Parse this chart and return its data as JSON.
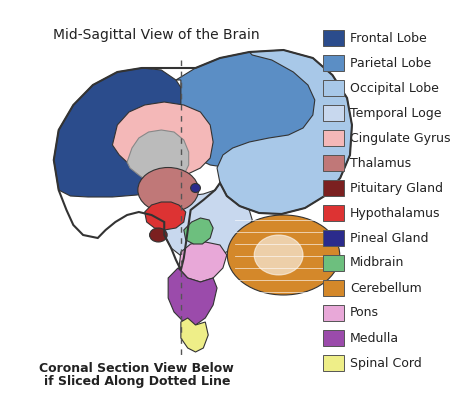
{
  "title": "Mid-Sagittal View of the Brain",
  "bottom_text_line1": "Coronal Section View Below",
  "bottom_text_line2": "if Sliced Along Dotted Line",
  "legend_items": [
    {
      "label": "Frontal Lobe",
      "color": "#2B4C8C"
    },
    {
      "label": "Parietal Lobe",
      "color": "#5B8EC5"
    },
    {
      "label": "Occipital Lobe",
      "color": "#A8C8E8"
    },
    {
      "label": "Temporal Loge",
      "color": "#C8D8EE"
    },
    {
      "label": "Cingulate Gyrus",
      "color": "#F4B8B8"
    },
    {
      "label": "Thalamus",
      "color": "#C07878"
    },
    {
      "label": "Pituitary Gland",
      "color": "#7B2020"
    },
    {
      "label": "Hypothalamus",
      "color": "#DD3333"
    },
    {
      "label": "Pineal Gland",
      "color": "#2B2B8C"
    },
    {
      "label": "Midbrain",
      "color": "#6DBF7E"
    },
    {
      "label": "Cerebellum",
      "color": "#D4882A"
    },
    {
      "label": "Pons",
      "color": "#E8A8D8"
    },
    {
      "label": "Medulla",
      "color": "#9B4BAB"
    },
    {
      "label": "Spinal Cord",
      "color": "#EEEE88"
    }
  ],
  "bg_color": "#FFFFFF",
  "text_color": "#222222",
  "title_fontsize": 10,
  "label_fontsize": 9,
  "legend_fontsize": 9
}
